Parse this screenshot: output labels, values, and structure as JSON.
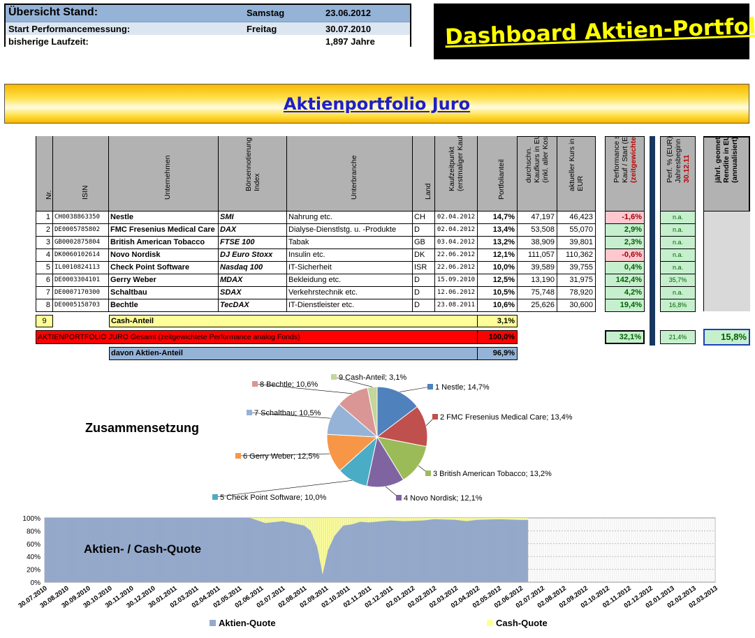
{
  "info": {
    "title": "Übersicht Stand:",
    "stand_day": "Samstag",
    "stand_date": "23.06.2012",
    "start_label": "Start Performancemessung:",
    "start_day": "Freitag",
    "start_date": "30.07.2010",
    "runtime_label": "bisherige Laufzeit:",
    "runtime_value": "1,897 Jahre"
  },
  "dashboard_title": "Dashboard Aktien-Portfolio",
  "banner_title": "Aktienportfolio Juro",
  "table": {
    "headers": {
      "nr": "Nr.",
      "isin": "ISIN",
      "company": "Unternehmen",
      "index_l1": "Börsennotierung /",
      "index_l2": "Index",
      "branch": "Unterbranche",
      "country": "Land",
      "buydate_l1": "Kaufzeitpunkt",
      "buydate_l2": "(erstmaliger Kauf)",
      "share": "Portfolianteil",
      "avgprice_l1": "durchschn.",
      "avgprice_l2": "Kaufkurs in EUR",
      "avgprice_l3": "(inkl. aller Kosten)",
      "curprice_l1": "aktueller Kurs in",
      "curprice_l2": "EUR",
      "perf_l1": "Performance seit",
      "perf_l2": "Kauf / Start (EUR)",
      "perf_l3": "(zeitgewichtet)",
      "ytd_l1": "Perf. % (EUR) seit:",
      "ytd_l2": "Jahresbeginn",
      "ytd_l3": "30.12.11",
      "annual_l1": "jährl. geometr.",
      "annual_l2": "Rendite in EUR",
      "annual_l3": "(annualisiert) in %"
    },
    "rows": [
      {
        "nr": "1",
        "isin": "CH0038863350",
        "company": "Nestle",
        "index": "SMI",
        "branch": "Nahrung etc.",
        "country": "CH",
        "date": "02.04.2012",
        "share": "14,7%",
        "avg": "47,197",
        "cur": "46,423",
        "perf": "-1,6%",
        "ytd": "n.a."
      },
      {
        "nr": "2",
        "isin": "DE0005785802",
        "company": "FMC Fresenius Medical Care",
        "index": "DAX",
        "branch": "Dialyse-Dienstlstg. u. -Produkte",
        "country": "D",
        "date": "02.04.2012",
        "share": "13,4%",
        "avg": "53,508",
        "cur": "55,070",
        "perf": "2,9%",
        "ytd": "n.a."
      },
      {
        "nr": "3",
        "isin": "GB0002875804",
        "company": "British American Tobacco",
        "index": "FTSE 100",
        "branch": "Tabak",
        "country": "GB",
        "date": "03.04.2012",
        "share": "13,2%",
        "avg": "38,909",
        "cur": "39,801",
        "perf": "2,3%",
        "ytd": "n.a."
      },
      {
        "nr": "4",
        "isin": "DK0060102614",
        "company": "Novo Nordisk",
        "index": "DJ Euro Stoxx",
        "branch": "Insulin etc.",
        "country": "DK",
        "date": "22.06.2012",
        "share": "12,1%",
        "avg": "111,057",
        "cur": "110,362",
        "perf": "-0,6%",
        "ytd": "n.a."
      },
      {
        "nr": "5",
        "isin": "IL0010824113",
        "company": "Check Point Software",
        "index": "Nasdaq 100",
        "branch": "IT-Sicherheit",
        "country": "ISR",
        "date": "22.06.2012",
        "share": "10,0%",
        "avg": "39,589",
        "cur": "39,755",
        "perf": "0,4%",
        "ytd": "n.a."
      },
      {
        "nr": "6",
        "isin": "DE0003304101",
        "company": "Gerry Weber",
        "index": "MDAX",
        "branch": "Bekleidung etc.",
        "country": "D",
        "date": "15.09.2010",
        "share": "12,5%",
        "avg": "13,190",
        "cur": "31,975",
        "perf": "142,4%",
        "ytd": "35,7%"
      },
      {
        "nr": "7",
        "isin": "DE0007170300",
        "company": "Schaltbau",
        "index": "SDAX",
        "branch": "Verkehrstechnik etc.",
        "country": "D",
        "date": "12.06.2012",
        "share": "10,5%",
        "avg": "75,748",
        "cur": "78,920",
        "perf": "4,2%",
        "ytd": "n.a."
      },
      {
        "nr": "8",
        "isin": "DE0005158703",
        "company": "Bechtle",
        "index": "TecDAX",
        "branch": "IT-Dienstleister etc.",
        "country": "D",
        "date": "23.08.2011",
        "share": "10,6%",
        "avg": "25,626",
        "cur": "30,600",
        "perf": "19,4%",
        "ytd": "16,8%"
      }
    ],
    "cash_row": {
      "nr": "9",
      "label": "Cash-Anteil",
      "share": "3,1%"
    },
    "total_row": {
      "label": "AKTIENPORTFOLIO JURO Gesamt (zeitgewichtete Performance analog Fonds)",
      "share": "100,0%",
      "perf": "32,1%",
      "ytd": "21,4%",
      "annual": "15,8%"
    },
    "equity_row": {
      "label": "davon Aktien-Anteil",
      "share": "96,9%"
    }
  },
  "composition_title": "Zusammensetzung",
  "quota_title": "Aktien- / Cash-Quote",
  "colors": {
    "pie": [
      "#4f81bd",
      "#c0504d",
      "#9bbb59",
      "#8064a2",
      "#4bacc6",
      "#f79646",
      "#95b3d7",
      "#d99694",
      "#c3d69b"
    ],
    "equity": "#95a9cc",
    "cash": "#ffff99",
    "total_red": "#ff0000",
    "cash_yellow": "#ffff99",
    "equity_blue": "#95b3d7"
  },
  "chart_data": [
    {
      "type": "pie",
      "title": "Zusammensetzung",
      "labels": [
        "1 Nestle; 14,7%",
        "2 FMC Fresenius Medical Care; 13,4%",
        "3 British American Tobacco; 13,2%",
        "4 Novo Nordisk; 12,1%",
        "5 Check Point Software; 10,0%",
        "6 Gerry Weber; 12,5%",
        "7 Schaltbau; 10,5%",
        "8 Bechtle; 10,6%",
        "9 Cash-Anteil; 3,1%"
      ],
      "values": [
        14.7,
        13.4,
        13.2,
        12.1,
        10.0,
        12.5,
        10.5,
        10.6,
        3.1
      ]
    },
    {
      "type": "area",
      "title": "Aktien- / Cash-Quote",
      "ylim": [
        0,
        100
      ],
      "yticks": [
        "0%",
        "20%",
        "40%",
        "60%",
        "80%",
        "100%"
      ],
      "x_labels": [
        "30.07.2010",
        "30.08.2010",
        "30.09.2010",
        "30.10.2010",
        "30.11.2010",
        "30.12.2010",
        "30.01.2011",
        "02.03.2011",
        "02.04.2011",
        "02.05.2011",
        "02.06.2011",
        "02.07.2011",
        "02.08.2011",
        "02.09.2011",
        "02.10.2011",
        "02.11.2011",
        "02.12.2011",
        "02.01.2012",
        "02.02.2012",
        "02.03.2012",
        "02.04.2012",
        "02.05.2012",
        "02.06.2012",
        "02.07.2012",
        "02.08.2012",
        "02.09.2012",
        "02.10.2012",
        "02.11.2012",
        "02.12.2012",
        "02.01.2013",
        "02.02.2013",
        "02.03.2013"
      ],
      "series": [
        {
          "name": "Aktien-Quote",
          "points": [
            [
              0,
              100
            ],
            [
              9.5,
              100
            ],
            [
              10.2,
              92
            ],
            [
              11,
              95
            ],
            [
              12,
              88
            ],
            [
              12.3,
              80
            ],
            [
              12.6,
              55
            ],
            [
              12.85,
              12
            ],
            [
              13.1,
              50
            ],
            [
              13.4,
              72
            ],
            [
              13.8,
              88
            ],
            [
              14.2,
              90
            ],
            [
              14.6,
              94
            ],
            [
              15,
              93
            ],
            [
              15.6,
              95
            ],
            [
              16,
              96
            ],
            [
              16.6,
              95
            ],
            [
              17.5,
              96
            ],
            [
              18,
              98
            ],
            [
              19,
              97
            ],
            [
              19.5,
              95
            ],
            [
              20,
              97
            ],
            [
              21,
              98
            ],
            [
              22,
              96.9
            ],
            [
              22.35,
              96.9
            ]
          ]
        },
        {
          "name": "Cash-Quote",
          "points": []
        }
      ],
      "data_end_index": 22.35,
      "x_count": 32
    }
  ],
  "legend": {
    "equity": "Aktien-Quote",
    "cash": "Cash-Quote"
  }
}
